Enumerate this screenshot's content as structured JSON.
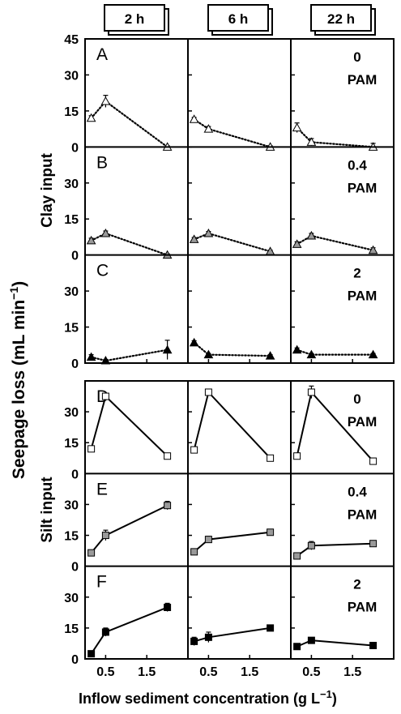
{
  "figure": {
    "column_headers": [
      "2 h",
      "6 h",
      "22 h"
    ],
    "y_axis_title": "Seepage loss (mL min",
    "y_axis_title_sup": "−1",
    "y_axis_title_end": ")",
    "x_axis_title": "Inflow sediment concentration (g L",
    "x_axis_title_sup": "−1",
    "x_axis_title_end": ")",
    "group_labels": [
      "Clay input",
      "Silt input"
    ],
    "y_ticks_with_45": [
      "45",
      "30",
      "15",
      "0"
    ],
    "y_ticks": [
      "30",
      "15",
      "0"
    ],
    "x_ticks": [
      "0.5",
      "1.5"
    ],
    "pam_unit": "PAM"
  },
  "chart_data": {
    "type": "line",
    "x": [
      0.15,
      0.5,
      2.0
    ],
    "xlim": [
      0,
      2.5
    ],
    "ylim": [
      0,
      45
    ],
    "rows": [
      {
        "letter": "A",
        "group": "Clay input",
        "pam": "0",
        "marker": "triangle-open",
        "line": "dotted",
        "columns": [
          {
            "time": "2 h",
            "y": [
              12,
              19,
              0
            ],
            "err": [
              1,
              2.5,
              0.5
            ]
          },
          {
            "time": "6 h",
            "y": [
              11.5,
              7.5,
              0
            ],
            "err": [
              0.8,
              1,
              0.5
            ]
          },
          {
            "time": "22 h",
            "y": [
              8,
              2,
              0
            ],
            "err": [
              2,
              1.5,
              1.5
            ]
          }
        ]
      },
      {
        "letter": "B",
        "group": "Clay input",
        "pam": "0.4",
        "marker": "triangle-gray",
        "line": "dotted",
        "columns": [
          {
            "time": "2 h",
            "y": [
              6,
              9,
              0
            ],
            "err": [
              1,
              1,
              0.5
            ]
          },
          {
            "time": "6 h",
            "y": [
              6.5,
              9,
              1.5
            ],
            "err": [
              0.8,
              0.8,
              0.5
            ]
          },
          {
            "time": "22 h",
            "y": [
              4.5,
              8,
              2
            ],
            "err": [
              1,
              1,
              1
            ]
          }
        ]
      },
      {
        "letter": "C",
        "group": "Clay input",
        "pam": "2",
        "marker": "triangle-filled",
        "line": "dotted",
        "columns": [
          {
            "time": "2 h",
            "y": [
              2.5,
              1,
              5.5
            ],
            "err": [
              1,
              0.5,
              4
            ]
          },
          {
            "time": "6 h",
            "y": [
              8.5,
              3.5,
              3
            ],
            "err": [
              0.8,
              0.5,
              0.5
            ]
          },
          {
            "time": "22 h",
            "y": [
              5.5,
              3.5,
              3.5
            ],
            "err": [
              0.8,
              0.5,
              0.5
            ]
          }
        ]
      },
      {
        "letter": "D",
        "group": "Silt input",
        "pam": "0",
        "marker": "square-open",
        "line": "solid",
        "columns": [
          {
            "time": "2 h",
            "y": [
              12,
              37.5,
              8.5
            ],
            "err": [
              1,
              1,
              0.5
            ]
          },
          {
            "time": "6 h",
            "y": [
              11.5,
              39.5,
              7.5
            ],
            "err": [
              1,
              1,
              0.5
            ]
          },
          {
            "time": "22 h",
            "y": [
              8.5,
              39.5,
              6
            ],
            "err": [
              1,
              3,
              1.5
            ]
          }
        ]
      },
      {
        "letter": "E",
        "group": "Silt input",
        "pam": "0.4",
        "marker": "square-gray",
        "line": "solid",
        "columns": [
          {
            "time": "2 h",
            "y": [
              6.5,
              15,
              29.5
            ],
            "err": [
              1,
              2.5,
              2
            ]
          },
          {
            "time": "6 h",
            "y": [
              7,
              13,
              16.5
            ],
            "err": [
              1,
              1.5,
              1
            ]
          },
          {
            "time": "22 h",
            "y": [
              5,
              10,
              11
            ],
            "err": [
              1,
              2,
              1
            ]
          }
        ]
      },
      {
        "letter": "F",
        "group": "Silt input",
        "pam": "2",
        "marker": "square-filled",
        "line": "solid",
        "columns": [
          {
            "time": "2 h",
            "y": [
              2.5,
              13,
              25
            ],
            "err": [
              1,
              2,
              2
            ]
          },
          {
            "time": "6 h",
            "y": [
              8.5,
              10.5,
              15
            ],
            "err": [
              2,
              2.5,
              1
            ]
          },
          {
            "time": "22 h",
            "y": [
              6,
              9,
              6.5
            ],
            "err": [
              1,
              1,
              1.5
            ]
          }
        ]
      }
    ]
  }
}
